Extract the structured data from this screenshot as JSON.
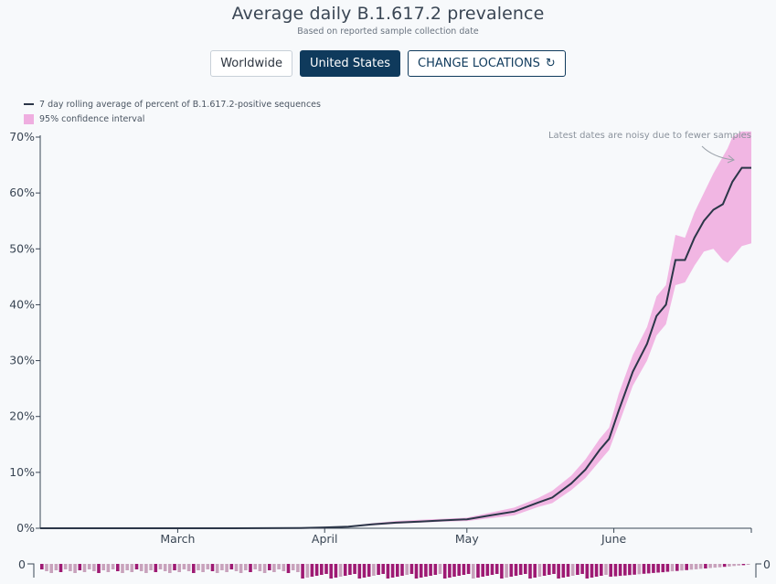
{
  "header": {
    "title": "Average daily B.1.617.2 prevalence",
    "subtitle": "Based on reported sample collection date"
  },
  "buttons": {
    "worldwide": "Worldwide",
    "united_states": "United States",
    "change_locations": "CHANGE LOCATIONS"
  },
  "legend": {
    "line_label": "7 day rolling average of percent of B.1.617.2-positive sequences",
    "band_label": "95% confidence interval"
  },
  "annotation": "Latest dates are noisy due to fewer samples",
  "colors": {
    "line": "#2b3648",
    "band": "#efaee0",
    "bar_dark": "#9e1a73",
    "bar_light": "#c8a2bc",
    "active_button": "#0f3a5c"
  },
  "icons": {
    "refresh": "refresh-icon"
  },
  "chart_data": {
    "type": "area",
    "x_axis": {
      "labels": [
        "March",
        "April",
        "May",
        "June"
      ],
      "label_days": [
        29,
        60,
        90,
        121
      ],
      "start_date": "2021-02-01",
      "end_date": "2021-06-28"
    },
    "y_axis": {
      "ticks": [
        "0%",
        "10%",
        "20%",
        "30%",
        "40%",
        "50%",
        "60%",
        "70%"
      ],
      "ylim": [
        0,
        70
      ]
    },
    "small_axis_labels": {
      "left": "0",
      "right": "0"
    },
    "series": [
      {
        "name": "7 day rolling average of percent of B.1.617.2-positive sequences",
        "x_days": [
          0,
          40,
          55,
          60,
          65,
          70,
          75,
          80,
          85,
          90,
          95,
          100,
          105,
          108,
          112,
          115,
          118,
          120,
          122,
          125,
          128,
          130,
          132,
          134,
          136,
          138,
          140,
          142,
          144,
          145,
          146,
          148,
          150
        ],
        "values": [
          0,
          0,
          0.05,
          0.15,
          0.3,
          0.7,
          1.0,
          1.2,
          1.4,
          1.6,
          2.3,
          3.0,
          4.6,
          5.5,
          8.0,
          10.5,
          14.0,
          16.0,
          21.0,
          28.0,
          33.0,
          38.0,
          40.0,
          48.0,
          48.0,
          52.0,
          55.0,
          57.0,
          58.0,
          60.0,
          62.0,
          64.5,
          64.5
        ]
      },
      {
        "name": "95% confidence interval (lower)",
        "x_days": [
          0,
          40,
          55,
          60,
          65,
          70,
          75,
          80,
          85,
          90,
          95,
          100,
          105,
          108,
          112,
          115,
          118,
          120,
          122,
          125,
          128,
          130,
          132,
          134,
          136,
          138,
          140,
          142,
          144,
          145,
          146,
          148,
          150
        ],
        "values": [
          0,
          0,
          0.02,
          0.1,
          0.2,
          0.5,
          0.8,
          1.0,
          1.2,
          1.3,
          1.8,
          2.3,
          3.8,
          4.5,
          6.8,
          9.0,
          12.0,
          14.0,
          18.5,
          25.5,
          30.0,
          34.5,
          36.5,
          43.5,
          44.0,
          47.0,
          49.5,
          50.0,
          48.0,
          47.5,
          48.5,
          50.5,
          51.0
        ]
      },
      {
        "name": "95% confidence interval (upper)",
        "x_days": [
          0,
          40,
          55,
          60,
          65,
          70,
          75,
          80,
          85,
          90,
          95,
          100,
          105,
          108,
          112,
          115,
          118,
          120,
          122,
          125,
          128,
          130,
          132,
          134,
          136,
          138,
          140,
          142,
          144,
          145,
          146,
          148,
          150
        ],
        "values": [
          0,
          0,
          0.1,
          0.25,
          0.4,
          0.9,
          1.3,
          1.5,
          1.7,
          1.9,
          2.8,
          3.7,
          5.4,
          6.7,
          9.4,
          12.3,
          16.0,
          18.0,
          24.0,
          31.0,
          36.0,
          41.5,
          43.5,
          52.5,
          52.0,
          56.5,
          60.0,
          63.5,
          66.5,
          68.0,
          70.0,
          71.0,
          71.0
        ]
      }
    ]
  }
}
